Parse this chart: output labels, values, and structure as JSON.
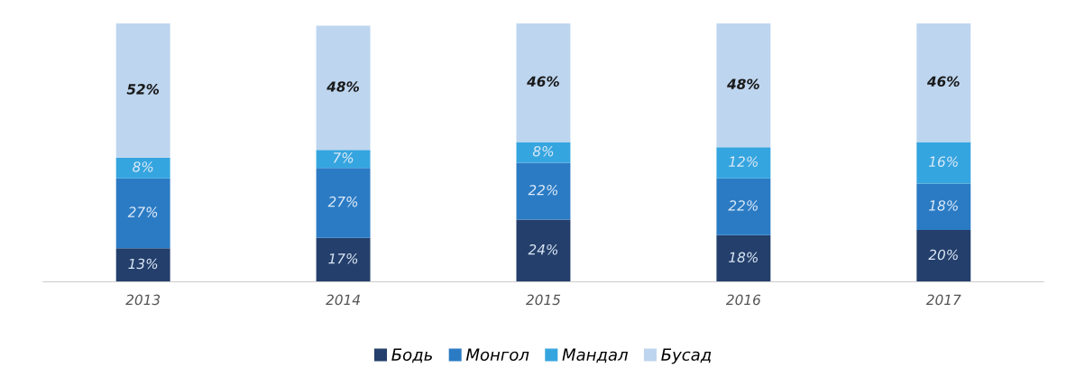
{
  "chart_data": {
    "type": "bar",
    "stacked": true,
    "categories": [
      "2013",
      "2014",
      "2015",
      "2016",
      "2017"
    ],
    "series": [
      {
        "name": "Бодь",
        "color": "#243f6b",
        "values": [
          13,
          17,
          24,
          18,
          20
        ],
        "value_labels": [
          "13%",
          "17%",
          "24%",
          "18%",
          "20%"
        ]
      },
      {
        "name": "Монгол",
        "color": "#2b7bc4",
        "values": [
          27,
          27,
          22,
          22,
          18
        ],
        "value_labels": [
          "27%",
          "27%",
          "22%",
          "22%",
          "18%"
        ]
      },
      {
        "name": "Мандал",
        "color": "#35a5df",
        "values": [
          8,
          7,
          8,
          12,
          16
        ],
        "value_labels": [
          "8%",
          "7%",
          "8%",
          "12%",
          "16%"
        ]
      },
      {
        "name": "Бусад",
        "color": "#bdd5ef",
        "values": [
          52,
          48,
          46,
          48,
          46
        ],
        "value_labels": [
          "52%",
          "48%",
          "46%",
          "48%",
          "46%"
        ]
      }
    ],
    "legend": "bottom"
  }
}
